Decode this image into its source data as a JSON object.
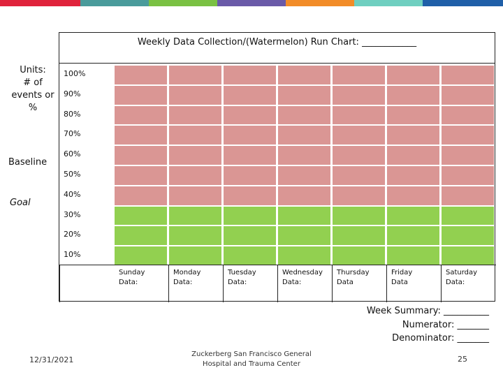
{
  "header_stripe_colors": [
    "#e0233c",
    "#4a9b9b",
    "#7ac143",
    "#6a5aa8",
    "#f28c28",
    "#6fcfc0",
    "#1f5fa8"
  ],
  "chart": {
    "title": "Weekly Data Collection/(Watermelon) Run Chart: ____________",
    "units_label": "Units:\n# of\nevents or\n%",
    "baseline_label": "Baseline",
    "goal_label": "Goal",
    "percent_labels": [
      "100%",
      "90%",
      "80%",
      "70%",
      "60%",
      "50%",
      "40%",
      "30%",
      "20%",
      "10%"
    ],
    "row_colors": [
      "red",
      "red",
      "red",
      "red",
      "red",
      "red",
      "red",
      "green",
      "green",
      "green"
    ],
    "colors": {
      "red": "#da9694",
      "green": "#92d050"
    },
    "day_labels": [
      "Sunday\nData:",
      "Monday\nData:",
      "Tuesday\nData:",
      "Wednesday\nData:",
      "Thursday\nData",
      "Friday\nData",
      "Saturday\nData:"
    ]
  },
  "summary": {
    "week_summary": "Week Summary: __________",
    "numerator": "Numerator: _______",
    "denominator": "Denominator: _______"
  },
  "footer": {
    "date": "12/31/2021",
    "organization": "Zuckerberg San Francisco General\nHospital and Trauma Center",
    "page_number": "25"
  }
}
